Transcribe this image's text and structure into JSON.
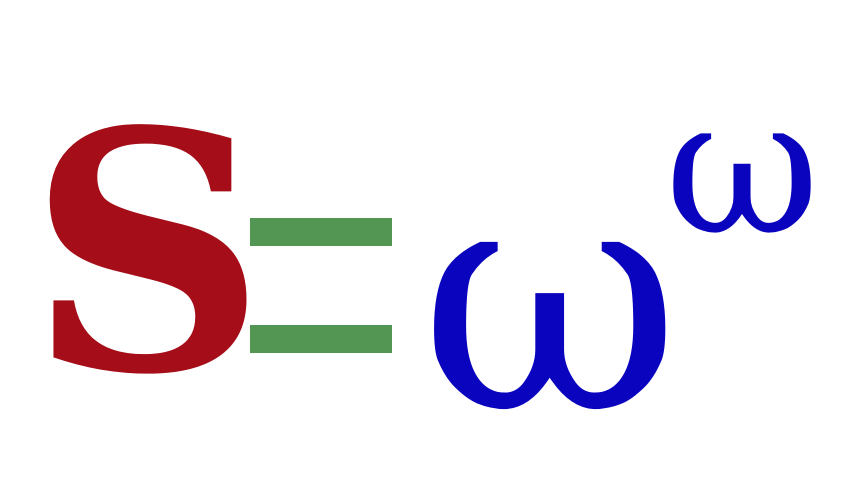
{
  "formula": {
    "lhs": "S",
    "operator": "=",
    "base": "ω",
    "exponent": "ω"
  },
  "colors": {
    "lhs": "#a50e18",
    "operator": "#539653",
    "rhs": "#0a04bf",
    "background": "#ffffff"
  }
}
